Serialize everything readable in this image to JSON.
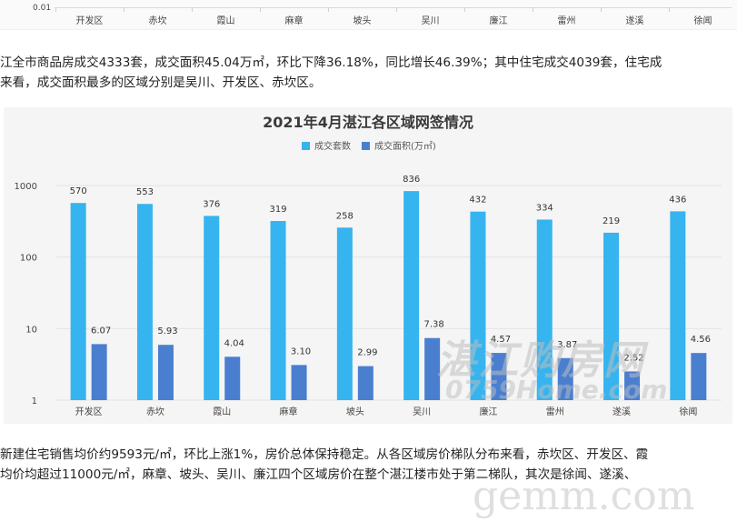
{
  "top_strip": {
    "ytick": "0.01",
    "categories": [
      "开发区",
      "赤坎",
      "霞山",
      "麻章",
      "坡头",
      "吴川",
      "廉江",
      "雷州",
      "遂溪",
      "徐闻"
    ]
  },
  "paragraph1": {
    "line1": "江全市商品房成交4333套，成交面积45.04万㎡，环比下降36.18%，同比增长46.39%；其中住宅成交4039套，住宅成",
    "line2": "来看，成交面积最多的区域分别是吴川、开发区、赤坎区。"
  },
  "paragraph2": {
    "line1": "新建住宅销售均价约9593元/㎡，环比上涨1%，房价总体保持稳定。从各区域房价梯队分布来看，赤坎区、开发区、霞",
    "line2": "均价均超过11000元/㎡，麻章、坡头、吴川、廉江四个区域房价在整个湛江楼市处于第二梯队，其次是徐闻、遂溪、"
  },
  "watermark": {
    "text": "湛江购房网",
    "sub": "0759Home.com",
    "corner": "gemm.com"
  },
  "colors": {
    "series1": "#35b4f0",
    "series2": "#4a7fd0",
    "title": "#3a3a3a"
  },
  "chart_data": {
    "type": "bar",
    "title": "2021年4月湛江各区域网签情况",
    "yscale": "log",
    "ylim": [
      1,
      1000
    ],
    "yticks": [
      "1",
      "10",
      "100",
      "1000"
    ],
    "categories": [
      "开发区",
      "赤坎",
      "霞山",
      "麻章",
      "坡头",
      "吴川",
      "廉江",
      "雷州",
      "遂溪",
      "徐闻"
    ],
    "series": [
      {
        "name": "成交套数",
        "values": [
          570,
          553,
          376,
          319,
          258,
          836,
          432,
          334,
          219,
          436
        ],
        "labels": [
          "570",
          "553",
          "376",
          "319",
          "258",
          "836",
          "432",
          "334",
          "219",
          "436"
        ]
      },
      {
        "name": "成交面积(万㎡)",
        "values": [
          6.07,
          5.93,
          4.04,
          3.1,
          2.99,
          7.38,
          4.57,
          3.87,
          2.52,
          4.56
        ],
        "labels": [
          "6.07",
          "5.93",
          "4.04",
          "3.10",
          "2.99",
          "7.38",
          "4.57",
          "3.87",
          "2.52",
          "4.56"
        ]
      }
    ],
    "legend_position": "top-center"
  }
}
